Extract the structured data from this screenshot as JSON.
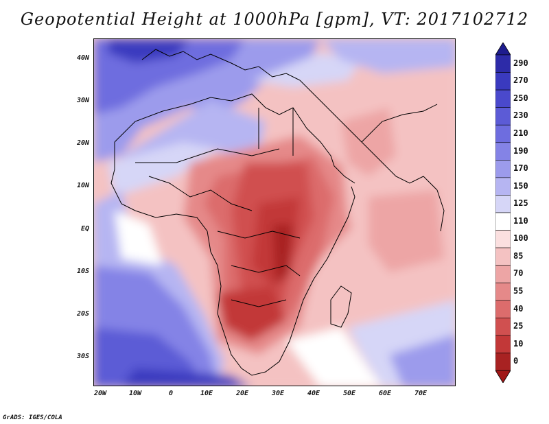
{
  "title": "Geopotential Height at 1000hPa [gpm], VT: 2017102712",
  "lat_labels": [
    "40N",
    "30N",
    "20N",
    "10N",
    "EQ",
    "10S",
    "20S",
    "30S"
  ],
  "lon_labels": [
    "20W",
    "10W",
    "0",
    "10E",
    "20E",
    "30E",
    "40E",
    "50E",
    "60E",
    "70E"
  ],
  "colorbar": {
    "labels": [
      "290",
      "270",
      "250",
      "230",
      "210",
      "190",
      "170",
      "150",
      "125",
      "110",
      "100",
      "85",
      "70",
      "55",
      "40",
      "25",
      "10",
      "0"
    ],
    "colors": [
      "#2d2ba8",
      "#3a3abf",
      "#4a49cc",
      "#5c5bd6",
      "#6e6ddf",
      "#8483e6",
      "#9c9bec",
      "#b6b5f2",
      "#d6d6f7",
      "#ffffff",
      "#fbe0e0",
      "#f4c2c2",
      "#eda5a5",
      "#e58989",
      "#dc6c6c",
      "#d05050",
      "#c23838",
      "#a82222"
    ],
    "top_arrow_color": "#1e1c8e",
    "bottom_arrow_color": "#a01616"
  },
  "footer": "GrADS: IGES/COLA"
}
